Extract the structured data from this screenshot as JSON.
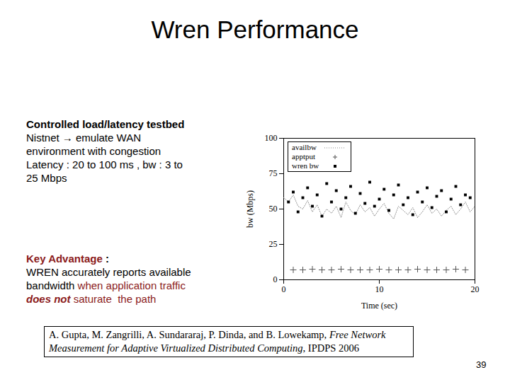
{
  "slide": {
    "title": "Wren Performance",
    "testbed": {
      "heading": "Controlled load/latency testbed",
      "lines": [
        "Nistnet → emulate WAN",
        "environment with congestion",
        "Latency : 20 to 100 ms , bw : 3 to",
        "25 Mbps"
      ]
    },
    "key_advantage": {
      "lines": [
        [
          {
            "text": "Key Advantage",
            "style": "red-bold"
          },
          {
            "text": " :",
            "style": "bold"
          }
        ],
        [
          {
            "text": "WREN accurately reports available",
            "style": "plain"
          }
        ],
        [
          {
            "text": "bandwidth ",
            "style": "plain"
          },
          {
            "text": "when application traffic",
            "style": "red"
          }
        ],
        [
          {
            "text": "does not",
            "style": "red-bold-italic"
          },
          {
            "text": " saturate  the path",
            "style": "red"
          }
        ]
      ]
    },
    "citation": [
      {
        "text": "A. Gupta, M. Zangrilli, A. Sundararaj, P. Dinda, and B. Lowekamp, ",
        "style": "plain"
      },
      {
        "text": "Free Network Measurement for Adaptive Virtualized Distributed Computing",
        "style": "italic"
      },
      {
        "text": ", IPDPS 2006",
        "style": "plain"
      }
    ],
    "page": 39
  },
  "chart_data": {
    "type": "scatter",
    "x_label": "Time (sec)",
    "y_label": "bw (Mbps)",
    "xlim": [
      0,
      20
    ],
    "xticks": [
      0,
      10,
      20
    ],
    "ylim": [
      0,
      100
    ],
    "yticks": [
      0,
      25,
      50,
      75,
      100
    ],
    "grid": false,
    "legend": "top-left",
    "series": [
      {
        "name": "availbw",
        "type": "line",
        "line_style": "dotted",
        "color": "#888888",
        "x": [
          0,
          0.5,
          1,
          1.5,
          2,
          2.5,
          3,
          3.5,
          4,
          4.5,
          5,
          5.5,
          6,
          6.5,
          7,
          7.5,
          8,
          8.5,
          9,
          9.5,
          10,
          10.5,
          11,
          11.5,
          12,
          12.5,
          13,
          13.5,
          14,
          14.5,
          15,
          15.5,
          16,
          16.5,
          17,
          17.5,
          18,
          18.5,
          19,
          19.5,
          20
        ],
        "values": [
          58,
          55,
          60,
          52,
          50,
          56,
          48,
          53,
          45,
          50,
          47,
          52,
          44,
          55,
          49,
          46,
          53,
          48,
          51,
          45,
          50,
          54,
          47,
          43,
          52,
          49,
          46,
          51,
          44,
          48,
          53,
          47,
          50,
          45,
          49,
          52,
          46,
          50,
          55,
          48,
          52
        ]
      },
      {
        "name": "apptput",
        "type": "scatter",
        "marker": "plus",
        "color": "#555555",
        "x": [
          1,
          2,
          3,
          4,
          5,
          6,
          7,
          8,
          9,
          10,
          11,
          12,
          13,
          14,
          15,
          16,
          17,
          18,
          19
        ],
        "values": [
          7,
          7,
          7.5,
          7,
          7,
          7.5,
          7,
          7,
          7,
          7.5,
          7,
          7,
          7,
          7.5,
          7,
          7,
          7,
          7.5,
          7
        ]
      },
      {
        "name": "wren bw",
        "type": "scatter",
        "marker": "square",
        "color": "#000000",
        "x": [
          0.5,
          1,
          1.5,
          2,
          2.5,
          3,
          3.5,
          4,
          4.5,
          5,
          5.5,
          6,
          6.5,
          7,
          7.5,
          8,
          8.5,
          9,
          9.5,
          10,
          10.5,
          11,
          11.5,
          12,
          12.5,
          13,
          13.5,
          14,
          14.5,
          15,
          15.5,
          16,
          16.5,
          17,
          17.5,
          18,
          18.5,
          19,
          19.5
        ],
        "values": [
          55,
          62,
          48,
          58,
          65,
          52,
          60,
          45,
          68,
          55,
          63,
          50,
          58,
          66,
          47,
          61,
          54,
          69,
          52,
          57,
          64,
          49,
          60,
          67,
          53,
          58,
          46,
          62,
          55,
          65,
          51,
          59,
          63,
          48,
          57,
          66,
          53,
          60,
          58
        ]
      }
    ]
  }
}
